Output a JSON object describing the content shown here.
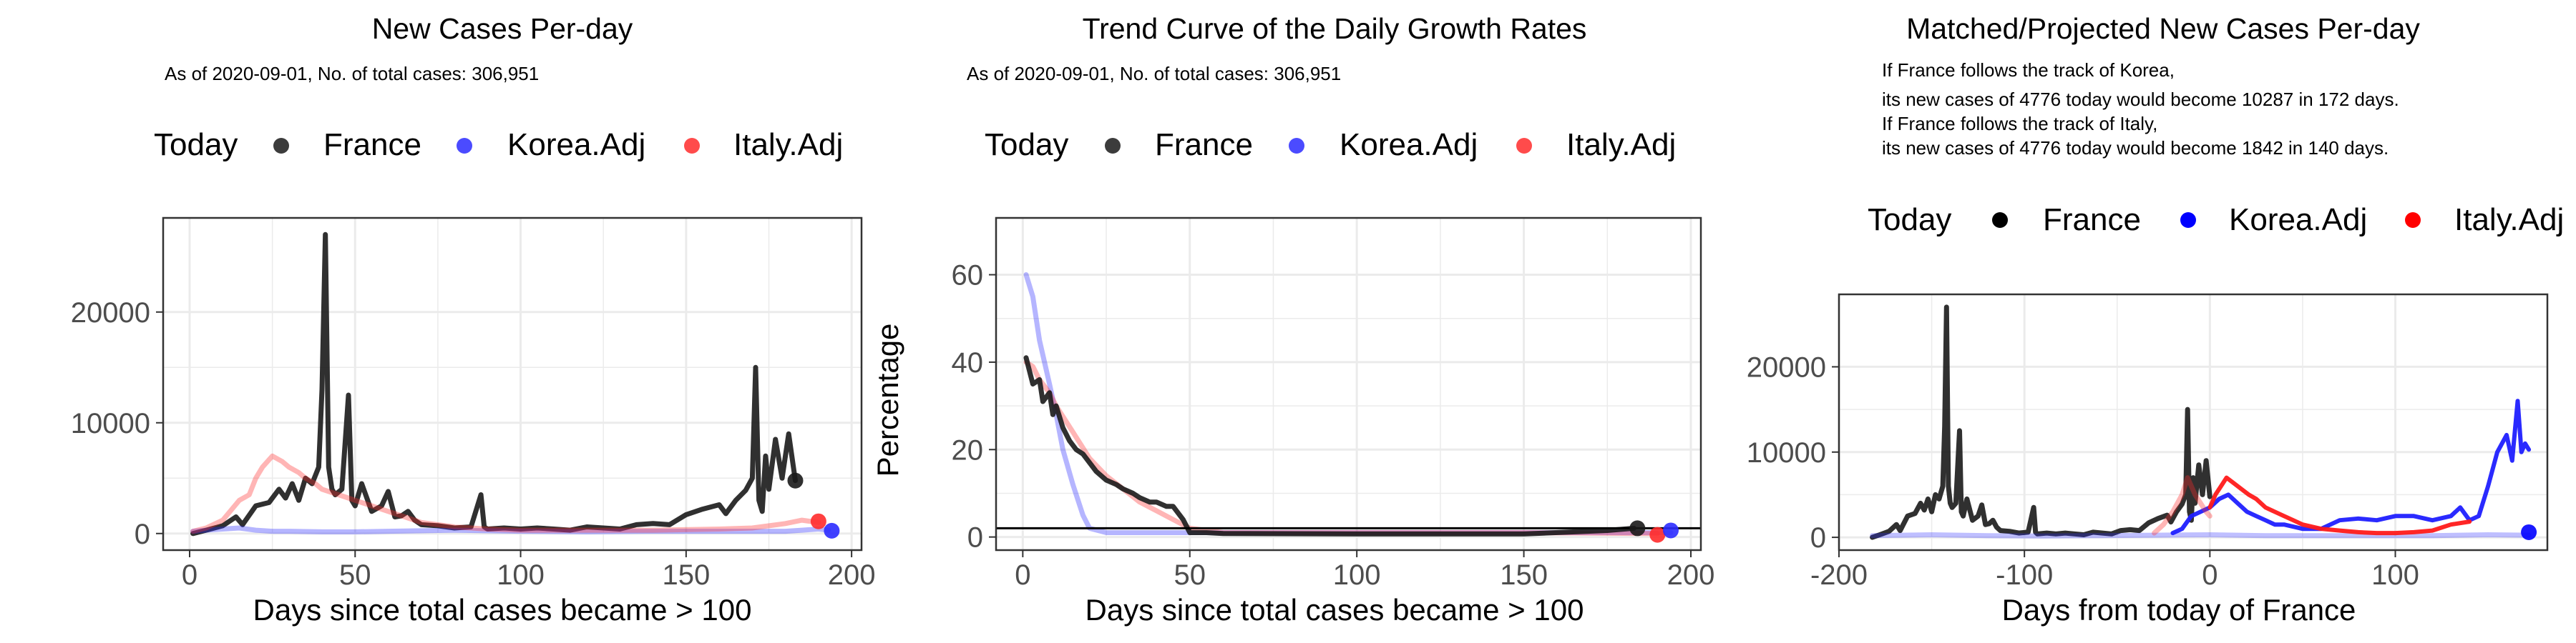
{
  "chart_data": [
    {
      "type": "line",
      "title": "New Cases Per-day",
      "subtitle": "As of 2020-09-01, No. of total cases: 306,951",
      "legend": {
        "title": "Today",
        "entries": [
          "France",
          "Korea.Adj",
          "Italy.Adj"
        ],
        "placement": "top"
      },
      "xlabel": "Days since total cases became > 100",
      "ylabel": "",
      "xlim": [
        -8,
        203
      ],
      "ylim": [
        -1500,
        28500
      ],
      "xticks": [
        0,
        50,
        100,
        150,
        200
      ],
      "yticks": [
        0,
        10000,
        20000
      ],
      "grid": true,
      "series": [
        {
          "name": "France",
          "color": "#1a1a1a",
          "opacity": 0.9,
          "width": 7,
          "x": [
            1,
            5,
            10,
            14,
            16,
            20,
            24,
            27,
            29,
            31,
            33,
            35,
            37,
            39,
            40,
            41,
            42,
            43,
            44,
            46,
            48,
            49,
            50,
            52,
            55,
            58,
            60,
            62,
            64,
            66,
            68,
            70,
            75,
            80,
            85,
            88,
            89,
            90,
            95,
            100,
            105,
            110,
            115,
            120,
            125,
            130,
            135,
            140,
            145,
            150,
            155,
            160,
            162,
            165,
            168,
            170,
            171,
            172,
            173,
            174,
            175,
            177,
            179,
            181,
            183
          ],
          "y": [
            0,
            300,
            700,
            1500,
            800,
            2500,
            2800,
            4000,
            3200,
            4500,
            3000,
            5000,
            4500,
            6000,
            13000,
            27000,
            6000,
            4000,
            3500,
            4000,
            12500,
            3000,
            2500,
            4500,
            2000,
            2500,
            3800,
            1500,
            1600,
            2000,
            1200,
            800,
            700,
            500,
            600,
            3500,
            600,
            400,
            500,
            400,
            500,
            400,
            300,
            600,
            500,
            400,
            800,
            900,
            800,
            1700,
            2200,
            2600,
            1800,
            3000,
            3900,
            5000,
            15000,
            3000,
            2000,
            7000,
            4000,
            8500,
            5000,
            9000,
            4776
          ]
        },
        {
          "name": "Korea.Adj",
          "color": "#2b2bff",
          "opacity": 0.35,
          "width": 7,
          "x": [
            1,
            5,
            10,
            15,
            20,
            25,
            30,
            40,
            50,
            60,
            80,
            100,
            120,
            140,
            160,
            180,
            185,
            190,
            193
          ],
          "y": [
            200,
            300,
            400,
            500,
            300,
            200,
            200,
            150,
            150,
            200,
            300,
            200,
            150,
            200,
            200,
            200,
            300,
            400,
            300
          ]
        },
        {
          "name": "Italy.Adj",
          "color": "#ff2b2b",
          "opacity": 0.35,
          "width": 7,
          "x": [
            1,
            5,
            10,
            15,
            18,
            20,
            22,
            25,
            28,
            30,
            33,
            35,
            38,
            40,
            45,
            50,
            55,
            60,
            65,
            70,
            80,
            90,
            100,
            120,
            140,
            160,
            170,
            180,
            185,
            190
          ],
          "y": [
            200,
            500,
            1200,
            3000,
            3500,
            5000,
            6000,
            7000,
            6500,
            6000,
            5500,
            5000,
            4500,
            4000,
            3500,
            3000,
            2500,
            2000,
            1500,
            1000,
            600,
            400,
            300,
            300,
            300,
            400,
            500,
            900,
            1200,
            1000
          ]
        }
      ],
      "today_points": [
        {
          "name": "France",
          "x": 183,
          "y": 4776,
          "color": "#1a1a1a"
        },
        {
          "name": "Italy.Adj",
          "x": 190,
          "y": 1100,
          "color": "#ff2b2b"
        },
        {
          "name": "Korea.Adj",
          "x": 194,
          "y": 250,
          "color": "#2b2bff"
        }
      ]
    },
    {
      "type": "line",
      "title": "Trend Curve of the Daily Growth Rates",
      "subtitle": "As of 2020-09-01, No. of total cases: 306,951",
      "legend": {
        "title": "Today",
        "entries": [
          "France",
          "Korea.Adj",
          "Italy.Adj"
        ],
        "placement": "top"
      },
      "xlabel": "Days since total cases became > 100",
      "ylabel": "Percentage",
      "xlim": [
        -8,
        203
      ],
      "ylim": [
        -3,
        73
      ],
      "xticks": [
        0,
        50,
        100,
        150,
        200
      ],
      "yticks": [
        0,
        20,
        40,
        60
      ],
      "grid": true,
      "hline": 2,
      "series": [
        {
          "name": "Korea.Adj",
          "color": "#2b2bff",
          "opacity": 0.35,
          "width": 7,
          "x": [
            1,
            3,
            5,
            8,
            10,
            12,
            15,
            18,
            20,
            25,
            30,
            50,
            100,
            150,
            190,
            194
          ],
          "y": [
            60,
            55,
            45,
            35,
            28,
            20,
            12,
            5,
            2,
            1,
            1,
            1,
            1,
            1,
            1,
            1
          ]
        },
        {
          "name": "Italy.Adj",
          "color": "#ff2b2b",
          "opacity": 0.35,
          "width": 7,
          "x": [
            1,
            3,
            5,
            8,
            10,
            15,
            20,
            25,
            30,
            35,
            40,
            45,
            50,
            55,
            60,
            100,
            150,
            190
          ],
          "y": [
            40,
            39,
            36,
            33,
            30,
            24,
            18,
            14,
            11,
            8,
            6,
            4,
            2,
            1.5,
            1,
            1,
            1,
            0.8
          ]
        },
        {
          "name": "France",
          "color": "#1a1a1a",
          "opacity": 0.9,
          "width": 7,
          "x": [
            1,
            3,
            5,
            6,
            8,
            9,
            10,
            12,
            14,
            16,
            18,
            20,
            22,
            25,
            28,
            30,
            33,
            35,
            38,
            40,
            43,
            45,
            48,
            50,
            55,
            60,
            100,
            150,
            175,
            183
          ],
          "y": [
            41,
            35,
            36,
            31,
            33,
            28,
            30,
            25,
            22,
            20,
            19,
            17,
            15,
            13,
            12,
            11,
            10,
            9,
            8,
            8,
            7,
            7,
            4,
            1,
            1,
            0.8,
            0.7,
            0.7,
            1.5,
            2
          ]
        }
      ],
      "today_points": [
        {
          "name": "France",
          "x": 184,
          "y": 2,
          "color": "#1a1a1a"
        },
        {
          "name": "Italy.Adj",
          "x": 190,
          "y": 0.5,
          "color": "#ff2b2b"
        },
        {
          "name": "Korea.Adj",
          "x": 194,
          "y": 1.5,
          "color": "#2b2bff"
        }
      ]
    },
    {
      "type": "line",
      "title": "Matched/Projected New Cases Per-day",
      "annotations": [
        "If France follows the track of Korea,",
        "its new cases of 4776 today would become 10287 in 172 days.",
        "If France follows the track of Italy,",
        "its new cases of 4776 today would become 1842 in 140 days."
      ],
      "legend": {
        "title": "Today",
        "entries": [
          "France",
          "Korea.Adj",
          "Italy.Adj"
        ],
        "placement": "top"
      },
      "xlabel": "Days from today of France",
      "ylabel": "",
      "xlim": [
        -200,
        182
      ],
      "ylim": [
        -1500,
        28500
      ],
      "xticks": [
        -200,
        -100,
        0,
        100
      ],
      "yticks": [
        0,
        10000,
        20000
      ],
      "grid": true,
      "series": [
        {
          "name": "France",
          "color": "#1a1a1a",
          "opacity": 0.9,
          "width": 7,
          "x": [
            -182,
            -178,
            -173,
            -169,
            -167,
            -163,
            -159,
            -156,
            -154,
            -152,
            -150,
            -148,
            -146,
            -144,
            -143,
            -142,
            -141,
            -140,
            -139,
            -137,
            -135,
            -134,
            -133,
            -131,
            -128,
            -125,
            -123,
            -121,
            -119,
            -117,
            -115,
            -113,
            -108,
            -103,
            -98,
            -95,
            -94,
            -93,
            -88,
            -83,
            -78,
            -73,
            -68,
            -63,
            -58,
            -53,
            -48,
            -43,
            -38,
            -33,
            -28,
            -23,
            -21,
            -18,
            -15,
            -13,
            -12,
            -11,
            -10,
            -9,
            -8,
            -6,
            -4,
            -2,
            0
          ],
          "y": [
            0,
            300,
            700,
            1500,
            800,
            2500,
            2800,
            4000,
            3200,
            4500,
            3000,
            5000,
            4500,
            6000,
            13000,
            27000,
            6000,
            4000,
            3500,
            4000,
            12500,
            3000,
            2500,
            4500,
            2000,
            2500,
            3800,
            1500,
            1600,
            2000,
            1200,
            800,
            700,
            500,
            600,
            3500,
            600,
            400,
            500,
            400,
            500,
            400,
            300,
            600,
            500,
            400,
            800,
            900,
            800,
            1700,
            2200,
            2600,
            1800,
            3000,
            3900,
            5000,
            15000,
            3000,
            2000,
            7000,
            4000,
            8500,
            5000,
            9000,
            4776
          ]
        },
        {
          "name": "Korea.Adj",
          "color": "#2b2bff",
          "opacity": 0.3,
          "width": 7,
          "x": [
            -182,
            -150,
            -120,
            -90,
            -60,
            -30,
            0,
            30,
            60,
            90,
            120,
            150,
            172
          ],
          "y": [
            200,
            300,
            200,
            150,
            200,
            250,
            300,
            200,
            200,
            200,
            200,
            300,
            250
          ]
        },
        {
          "name": "Korea.Adj",
          "color": "#1f1fff",
          "opacity": 0.95,
          "width": 6,
          "x": [
            -20,
            -15,
            -10,
            -5,
            0,
            5,
            10,
            15,
            20,
            25,
            30,
            35,
            40,
            50,
            60,
            70,
            80,
            90,
            100,
            110,
            120,
            130,
            135,
            140,
            145,
            150,
            155,
            160,
            163,
            166,
            168,
            170,
            172
          ],
          "y": [
            500,
            1000,
            2500,
            3000,
            3500,
            4500,
            5000,
            4000,
            3000,
            2500,
            2000,
            1500,
            1500,
            1000,
            1000,
            2000,
            2200,
            2000,
            2500,
            2500,
            2000,
            2500,
            3500,
            2000,
            2500,
            6000,
            10000,
            12000,
            9000,
            16000,
            10000,
            11000,
            10287
          ]
        },
        {
          "name": "Italy.Adj",
          "color": "#ff2b2b",
          "opacity": 0.35,
          "width": 7,
          "x": [
            -30,
            -25,
            -20,
            -15,
            -12,
            -10,
            -8,
            -5,
            -2,
            0
          ],
          "y": [
            500,
            1500,
            3000,
            5000,
            7000,
            6000,
            5000,
            4000,
            3000,
            2500
          ]
        },
        {
          "name": "Italy.Adj",
          "color": "#ff1a1a",
          "opacity": 0.95,
          "width": 6,
          "x": [
            0,
            3,
            6,
            9,
            12,
            15,
            18,
            21,
            25,
            30,
            35,
            40,
            45,
            50,
            60,
            70,
            80,
            90,
            100,
            110,
            120,
            130,
            140
          ],
          "y": [
            3500,
            5000,
            6000,
            7000,
            6500,
            6000,
            5500,
            5000,
            4500,
            3500,
            3000,
            2500,
            2000,
            1500,
            1000,
            800,
            600,
            500,
            500,
            600,
            800,
            1500,
            1842
          ]
        }
      ],
      "today_points": [
        {
          "name": "Korea.Adj",
          "x": 172,
          "y": 600,
          "color": "#0000ff"
        }
      ]
    }
  ]
}
